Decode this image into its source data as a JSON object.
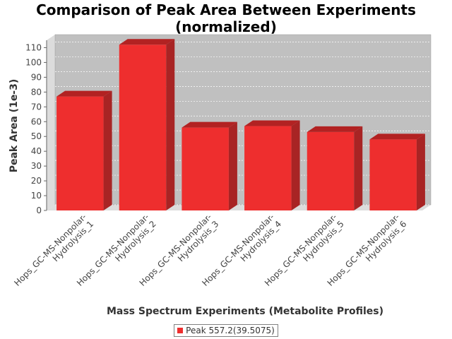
{
  "chart_data": {
    "type": "bar",
    "title_line1": "Comparison of Peak Area Between Experiments",
    "title_line2": "(normalized)",
    "xlabel": "Mass Spectrum Experiments (Metabolite Profiles)",
    "ylabel": "Peak Area (1e-3)",
    "ylim": [
      0,
      115
    ],
    "yticks": [
      0,
      10,
      20,
      30,
      40,
      50,
      60,
      70,
      80,
      90,
      100,
      110
    ],
    "categories": [
      [
        "Hops_GC-MS-Nonpolar-",
        "Hydrolysis_1"
      ],
      [
        "Hops_GC-MS-Nonpolar-",
        "Hydrolysis_2"
      ],
      [
        "Hops_GC-MS-Nonpolar-",
        "Hydrolysis_3"
      ],
      [
        "Hops_GC-MS-Nonpolar-",
        "Hydrolysis_4"
      ],
      [
        "Hops_GC-MS-Nonpolar-",
        "Hydrolysis_5"
      ],
      [
        "Hops_GC-MS-Nonpolar-",
        "Hydrolysis_6"
      ]
    ],
    "series": [
      {
        "name": "Peak 557.2(39.5075)",
        "values": [
          77,
          112,
          56,
          57,
          53,
          48
        ]
      }
    ],
    "grid": true,
    "legend_position": "bottom",
    "colors": {
      "bar": "#ee2e2e",
      "bar_top": "#b22222",
      "bar_side": "#a82424",
      "plot_bg": "#c0c0c0",
      "wall_bg": "#dcdcdc"
    }
  }
}
